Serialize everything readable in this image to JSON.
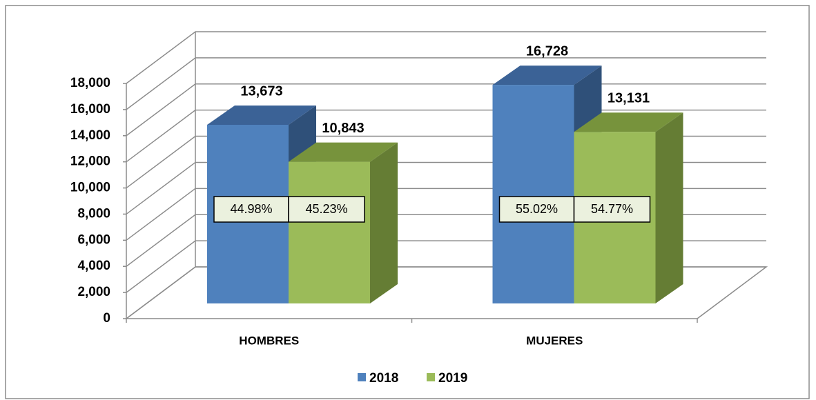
{
  "chart_data": {
    "type": "bar3d",
    "categories": [
      "HOMBRES",
      "MUJERES"
    ],
    "series": [
      {
        "name": "2018",
        "color": "#4f81bd",
        "top_color": "#3b6296",
        "side_color": "#2f5079",
        "values": [
          13673,
          16728
        ],
        "value_labels": [
          "13,673",
          "16,728"
        ],
        "shares": [
          44.98,
          55.02
        ],
        "share_labels": [
          "44.98%",
          "55.02%"
        ]
      },
      {
        "name": "2019",
        "color": "#9bbb59",
        "top_color": "#77933c",
        "side_color": "#657d34",
        "values": [
          10843,
          13131
        ],
        "value_labels": [
          "10,843",
          "13,131"
        ],
        "shares": [
          45.23,
          54.77
        ],
        "share_labels": [
          "45.23%",
          "54.77%"
        ]
      }
    ],
    "ylim": [
      0,
      18000
    ],
    "yticks": [
      0,
      {
        "value": 2000,
        "label": "2,000"
      },
      {
        "value": 4000,
        "label": "4,000"
      },
      {
        "value": 6000,
        "label": "6,000"
      },
      {
        "value": 8000,
        "label": "8,000"
      },
      {
        "value": 10000,
        "label": "10,000"
      },
      {
        "value": 12000,
        "label": "12,000"
      },
      {
        "value": 14000,
        "label": "14,000"
      },
      {
        "value": 16000,
        "label": "16,000"
      },
      {
        "value": 18000,
        "label": "18,000"
      }
    ],
    "grid": true,
    "legend": "bottom"
  }
}
